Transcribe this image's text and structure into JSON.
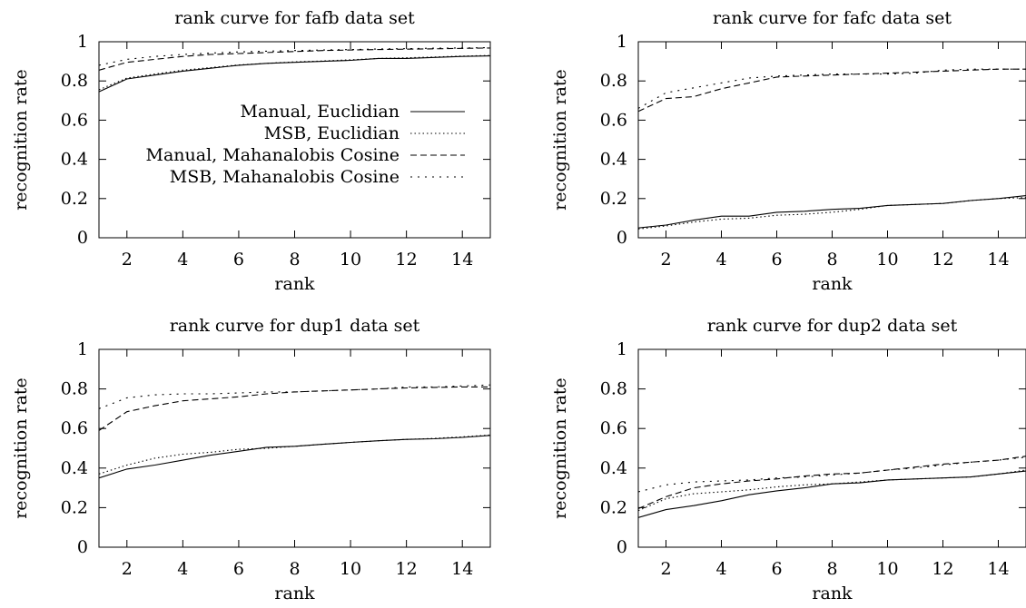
{
  "chart_data": [
    {
      "type": "line",
      "title": "rank curve for fafb data set",
      "xlabel": "rank",
      "ylabel": "recognition rate",
      "xlim": [
        1,
        15
      ],
      "ylim": [
        0,
        1
      ],
      "x_ticks": [
        2,
        4,
        6,
        8,
        10,
        12,
        14
      ],
      "y_ticks": [
        0,
        0.2,
        0.4,
        0.6,
        0.8,
        1
      ],
      "y_tick_labels": [
        "0",
        "0.2",
        "0.4",
        "0.6",
        "0.8",
        "1"
      ],
      "x": [
        1,
        2,
        3,
        4,
        5,
        6,
        7,
        8,
        9,
        10,
        11,
        12,
        13,
        14,
        15
      ],
      "legend": "top-right",
      "series": [
        {
          "name": "Manual, Euclidian",
          "dash": "",
          "values": [
            0.745,
            0.81,
            0.83,
            0.85,
            0.865,
            0.88,
            0.89,
            0.895,
            0.9,
            0.905,
            0.915,
            0.915,
            0.92,
            0.925,
            0.928
          ]
        },
        {
          "name": "MSB, Euclidian",
          "dash": "1.5 3",
          "values": [
            0.755,
            0.815,
            0.835,
            0.855,
            0.868,
            0.882,
            0.89,
            0.897,
            0.902,
            0.908,
            0.915,
            0.918,
            0.922,
            0.927,
            0.93
          ]
        },
        {
          "name": "Manual, Mahanalobis Cosine",
          "dash": "7 4",
          "values": [
            0.855,
            0.895,
            0.91,
            0.925,
            0.935,
            0.94,
            0.945,
            0.95,
            0.955,
            0.958,
            0.96,
            0.962,
            0.964,
            0.966,
            0.968
          ]
        },
        {
          "name": "MSB, Mahanalobis Cosine",
          "dash": "2 6",
          "values": [
            0.88,
            0.91,
            0.925,
            0.935,
            0.942,
            0.948,
            0.952,
            0.955,
            0.958,
            0.96,
            0.963,
            0.965,
            0.967,
            0.968,
            0.97
          ]
        }
      ]
    },
    {
      "type": "line",
      "title": "rank curve for fafc data set",
      "xlabel": "rank",
      "ylabel": "recognition rate",
      "xlim": [
        1,
        15
      ],
      "ylim": [
        0,
        1
      ],
      "x_ticks": [
        2,
        4,
        6,
        8,
        10,
        12,
        14
      ],
      "y_ticks": [
        0,
        0.2,
        0.4,
        0.6,
        0.8,
        1
      ],
      "y_tick_labels": [
        "0",
        "0.2",
        "0.4",
        "0.6",
        "0.8",
        "1"
      ],
      "x": [
        1,
        2,
        3,
        4,
        5,
        6,
        7,
        8,
        9,
        10,
        11,
        12,
        13,
        14,
        15
      ],
      "series": [
        {
          "name": "Manual, Euclidian",
          "dash": "",
          "values": [
            0.05,
            0.065,
            0.09,
            0.11,
            0.11,
            0.13,
            0.135,
            0.145,
            0.15,
            0.165,
            0.17,
            0.175,
            0.19,
            0.2,
            0.215
          ]
        },
        {
          "name": "MSB, Euclidian",
          "dash": "1.5 3",
          "values": [
            0.045,
            0.06,
            0.08,
            0.095,
            0.1,
            0.115,
            0.12,
            0.13,
            0.145,
            0.165,
            0.17,
            0.175,
            0.19,
            0.2,
            0.205
          ]
        },
        {
          "name": "Manual, Mahanalobis Cosine",
          "dash": "7 4",
          "values": [
            0.645,
            0.71,
            0.72,
            0.76,
            0.79,
            0.82,
            0.825,
            0.83,
            0.835,
            0.84,
            0.845,
            0.85,
            0.855,
            0.86,
            0.86
          ]
        },
        {
          "name": "MSB, Mahanalobis Cosine",
          "dash": "2 6",
          "values": [
            0.66,
            0.74,
            0.765,
            0.79,
            0.815,
            0.825,
            0.83,
            0.835,
            0.835,
            0.835,
            0.84,
            0.855,
            0.86,
            0.86,
            0.86
          ]
        }
      ]
    },
    {
      "type": "line",
      "title": "rank curve for dup1 data set",
      "xlabel": "rank",
      "ylabel": "recognition rate",
      "xlim": [
        1,
        15
      ],
      "ylim": [
        0,
        1
      ],
      "x_ticks": [
        2,
        4,
        6,
        8,
        10,
        12,
        14
      ],
      "y_ticks": [
        0,
        0.2,
        0.4,
        0.6,
        0.8,
        1
      ],
      "y_tick_labels": [
        "0",
        "0.2",
        "0.4",
        "0.6",
        "0.8",
        "1"
      ],
      "x": [
        1,
        2,
        3,
        4,
        5,
        6,
        7,
        8,
        9,
        10,
        11,
        12,
        13,
        14,
        15
      ],
      "series": [
        {
          "name": "Manual, Euclidian",
          "dash": "",
          "values": [
            0.35,
            0.395,
            0.415,
            0.44,
            0.465,
            0.485,
            0.505,
            0.51,
            0.52,
            0.53,
            0.538,
            0.545,
            0.548,
            0.555,
            0.565
          ]
        },
        {
          "name": "MSB, Euclidian",
          "dash": "1.5 3",
          "values": [
            0.37,
            0.415,
            0.45,
            0.47,
            0.48,
            0.495,
            0.5,
            0.51,
            0.52,
            0.53,
            0.538,
            0.545,
            0.55,
            0.558,
            0.567
          ]
        },
        {
          "name": "Manual, Mahanalobis Cosine",
          "dash": "7 4",
          "values": [
            0.59,
            0.685,
            0.715,
            0.74,
            0.75,
            0.76,
            0.775,
            0.785,
            0.79,
            0.795,
            0.8,
            0.805,
            0.808,
            0.81,
            0.81
          ]
        },
        {
          "name": "MSB, Mahanalobis Cosine",
          "dash": "2 6",
          "values": [
            0.7,
            0.755,
            0.77,
            0.775,
            0.775,
            0.78,
            0.785,
            0.785,
            0.79,
            0.795,
            0.8,
            0.81,
            0.81,
            0.815,
            0.82
          ]
        }
      ]
    },
    {
      "type": "line",
      "title": "rank curve for dup2 data set",
      "xlabel": "rank",
      "ylabel": "recognition rate",
      "xlim": [
        1,
        15
      ],
      "ylim": [
        0,
        1
      ],
      "x_ticks": [
        2,
        4,
        6,
        8,
        10,
        12,
        14
      ],
      "y_ticks": [
        0,
        0.2,
        0.4,
        0.6,
        0.8,
        1
      ],
      "y_tick_labels": [
        "0",
        "0.2",
        "0.4",
        "0.6",
        "0.8",
        "1"
      ],
      "x": [
        1,
        2,
        3,
        4,
        5,
        6,
        7,
        8,
        9,
        10,
        11,
        12,
        13,
        14,
        15
      ],
      "series": [
        {
          "name": "Manual, Euclidian",
          "dash": "",
          "values": [
            0.15,
            0.19,
            0.21,
            0.235,
            0.265,
            0.285,
            0.3,
            0.32,
            0.325,
            0.34,
            0.345,
            0.35,
            0.355,
            0.37,
            0.385
          ]
        },
        {
          "name": "MSB, Euclidian",
          "dash": "1.5 3",
          "values": [
            0.185,
            0.245,
            0.27,
            0.28,
            0.29,
            0.305,
            0.315,
            0.32,
            0.33,
            0.34,
            0.345,
            0.35,
            0.355,
            0.37,
            0.39
          ]
        },
        {
          "name": "Manual, Mahanalobis Cosine",
          "dash": "7 4",
          "values": [
            0.195,
            0.255,
            0.3,
            0.32,
            0.335,
            0.345,
            0.36,
            0.37,
            0.375,
            0.39,
            0.405,
            0.42,
            0.43,
            0.44,
            0.46
          ]
        },
        {
          "name": "MSB, Mahanalobis Cosine",
          "dash": "2 6",
          "values": [
            0.28,
            0.315,
            0.33,
            0.335,
            0.34,
            0.35,
            0.355,
            0.365,
            0.375,
            0.39,
            0.4,
            0.415,
            0.43,
            0.44,
            0.455
          ]
        }
      ]
    }
  ]
}
